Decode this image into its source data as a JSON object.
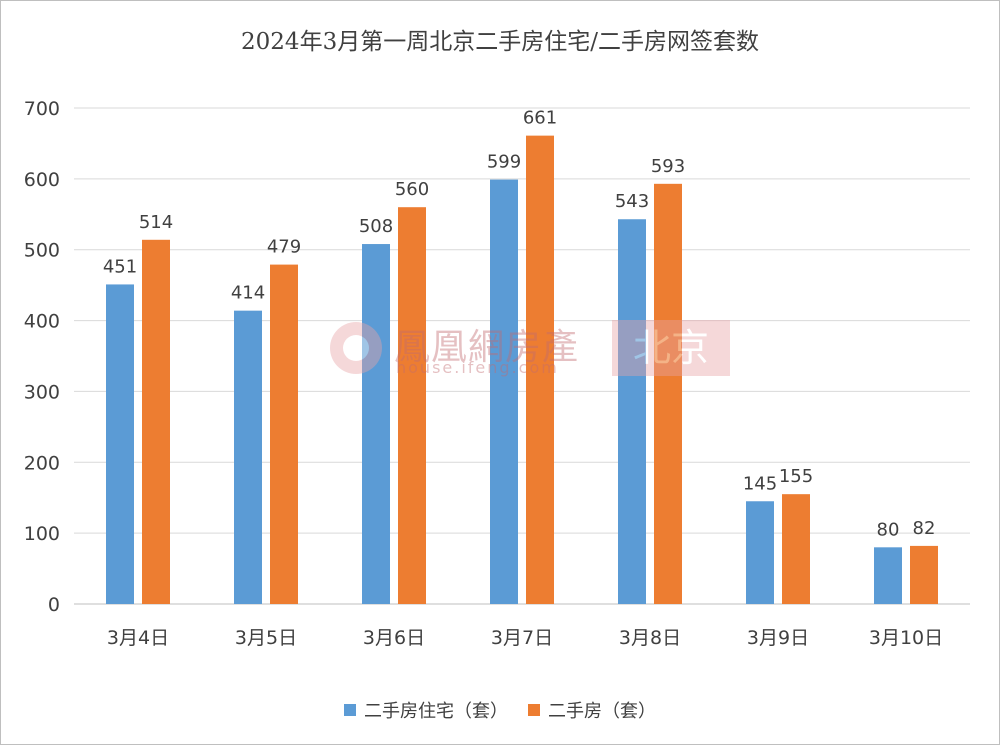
{
  "chart_data": {
    "type": "bar",
    "title": "2024年3月第一周北京二手房住宅/二手房网签套数",
    "categories": [
      "3月4日",
      "3月5日",
      "3月6日",
      "3月7日",
      "3月8日",
      "3月9日",
      "3月10日"
    ],
    "series": [
      {
        "name": "二手房住宅（套）",
        "color": "#5b9bd5",
        "values": [
          451,
          414,
          508,
          599,
          543,
          145,
          80
        ]
      },
      {
        "name": "二手房（套）",
        "color": "#ed7d31",
        "values": [
          514,
          479,
          560,
          661,
          593,
          155,
          82
        ]
      }
    ],
    "ylim": [
      0,
      700
    ],
    "yticks": [
      0,
      100,
      200,
      300,
      400,
      500,
      600,
      700
    ],
    "grid": true,
    "legend_position": "bottom"
  },
  "watermark": {
    "name": "鳳凰網房產",
    "url": "house.ifeng.com",
    "city": "北京"
  }
}
